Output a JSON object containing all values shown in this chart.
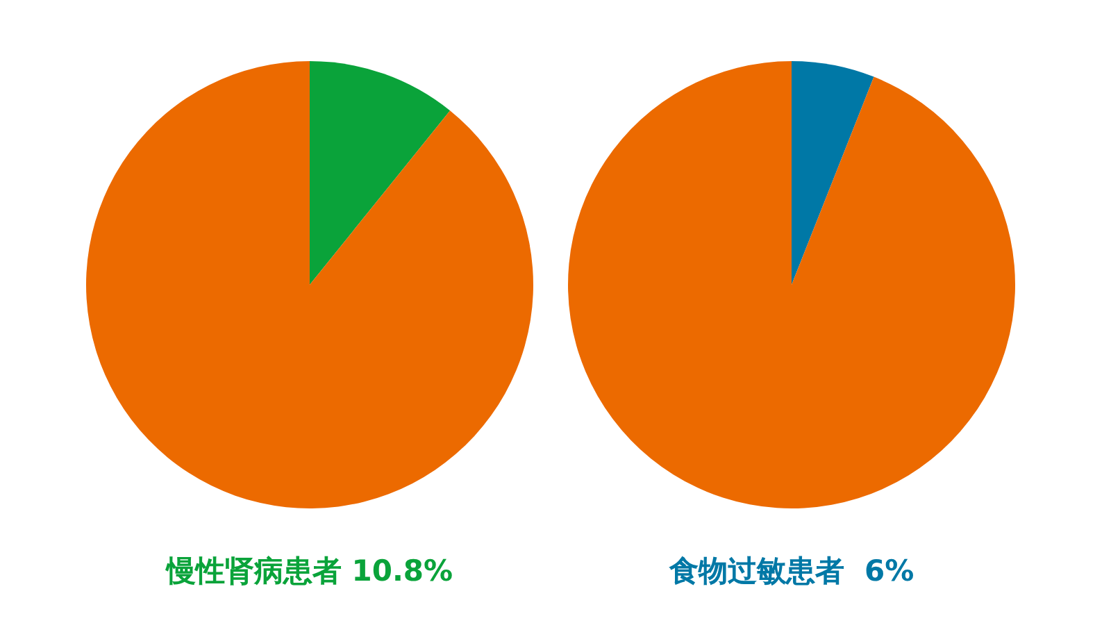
{
  "chart_data": [
    {
      "type": "pie",
      "title": "慢性肾病患者 10.8%",
      "categories": [
        null,
        null
      ],
      "values": [
        10.8,
        89.2
      ],
      "colors": [
        "#0aa33a",
        "#ec6a00"
      ]
    },
    {
      "type": "pie",
      "title": "食物过敏患者  6%",
      "categories": [
        null,
        null
      ],
      "values": [
        6,
        94
      ],
      "colors": [
        "#0078a6",
        "#ec6a00"
      ]
    }
  ]
}
